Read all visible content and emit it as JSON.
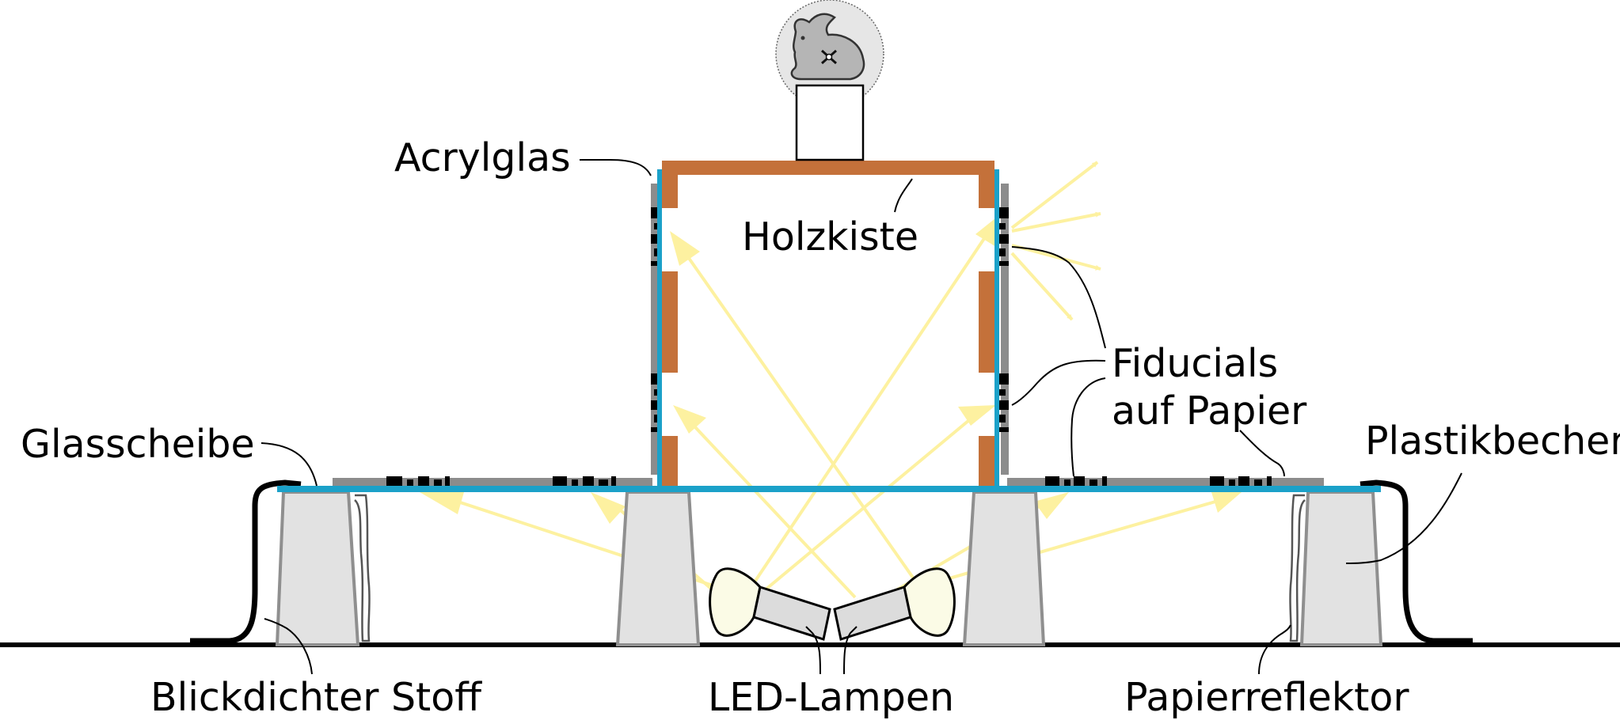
{
  "labels": {
    "acrylglas": "Acrylglas",
    "holzkiste": "Holzkiste",
    "fiducials_line1": "Fiducials",
    "fiducials_line2": "auf Papier",
    "glasscheibe": "Glasscheibe",
    "plastikbecher": "Plastikbecher",
    "blickdichter_stoff": "Blickdichter Stoff",
    "led_lampen": "LED-Lampen",
    "papierreflektor": "Papierreflektor"
  },
  "icons": {
    "object": "bunny-icon",
    "lamps": "led-lamp-icon"
  },
  "colors": {
    "wood": "#c4713a",
    "acrylic": "#1ba1c9",
    "light_ray": "#fdf1a0",
    "cup": "#e2e2e2",
    "cup_outline": "#8f8f8f",
    "paper": "#8c8c8c",
    "lamp_glass": "#fbfbe6",
    "lamp_body": "#dcdcdc"
  }
}
